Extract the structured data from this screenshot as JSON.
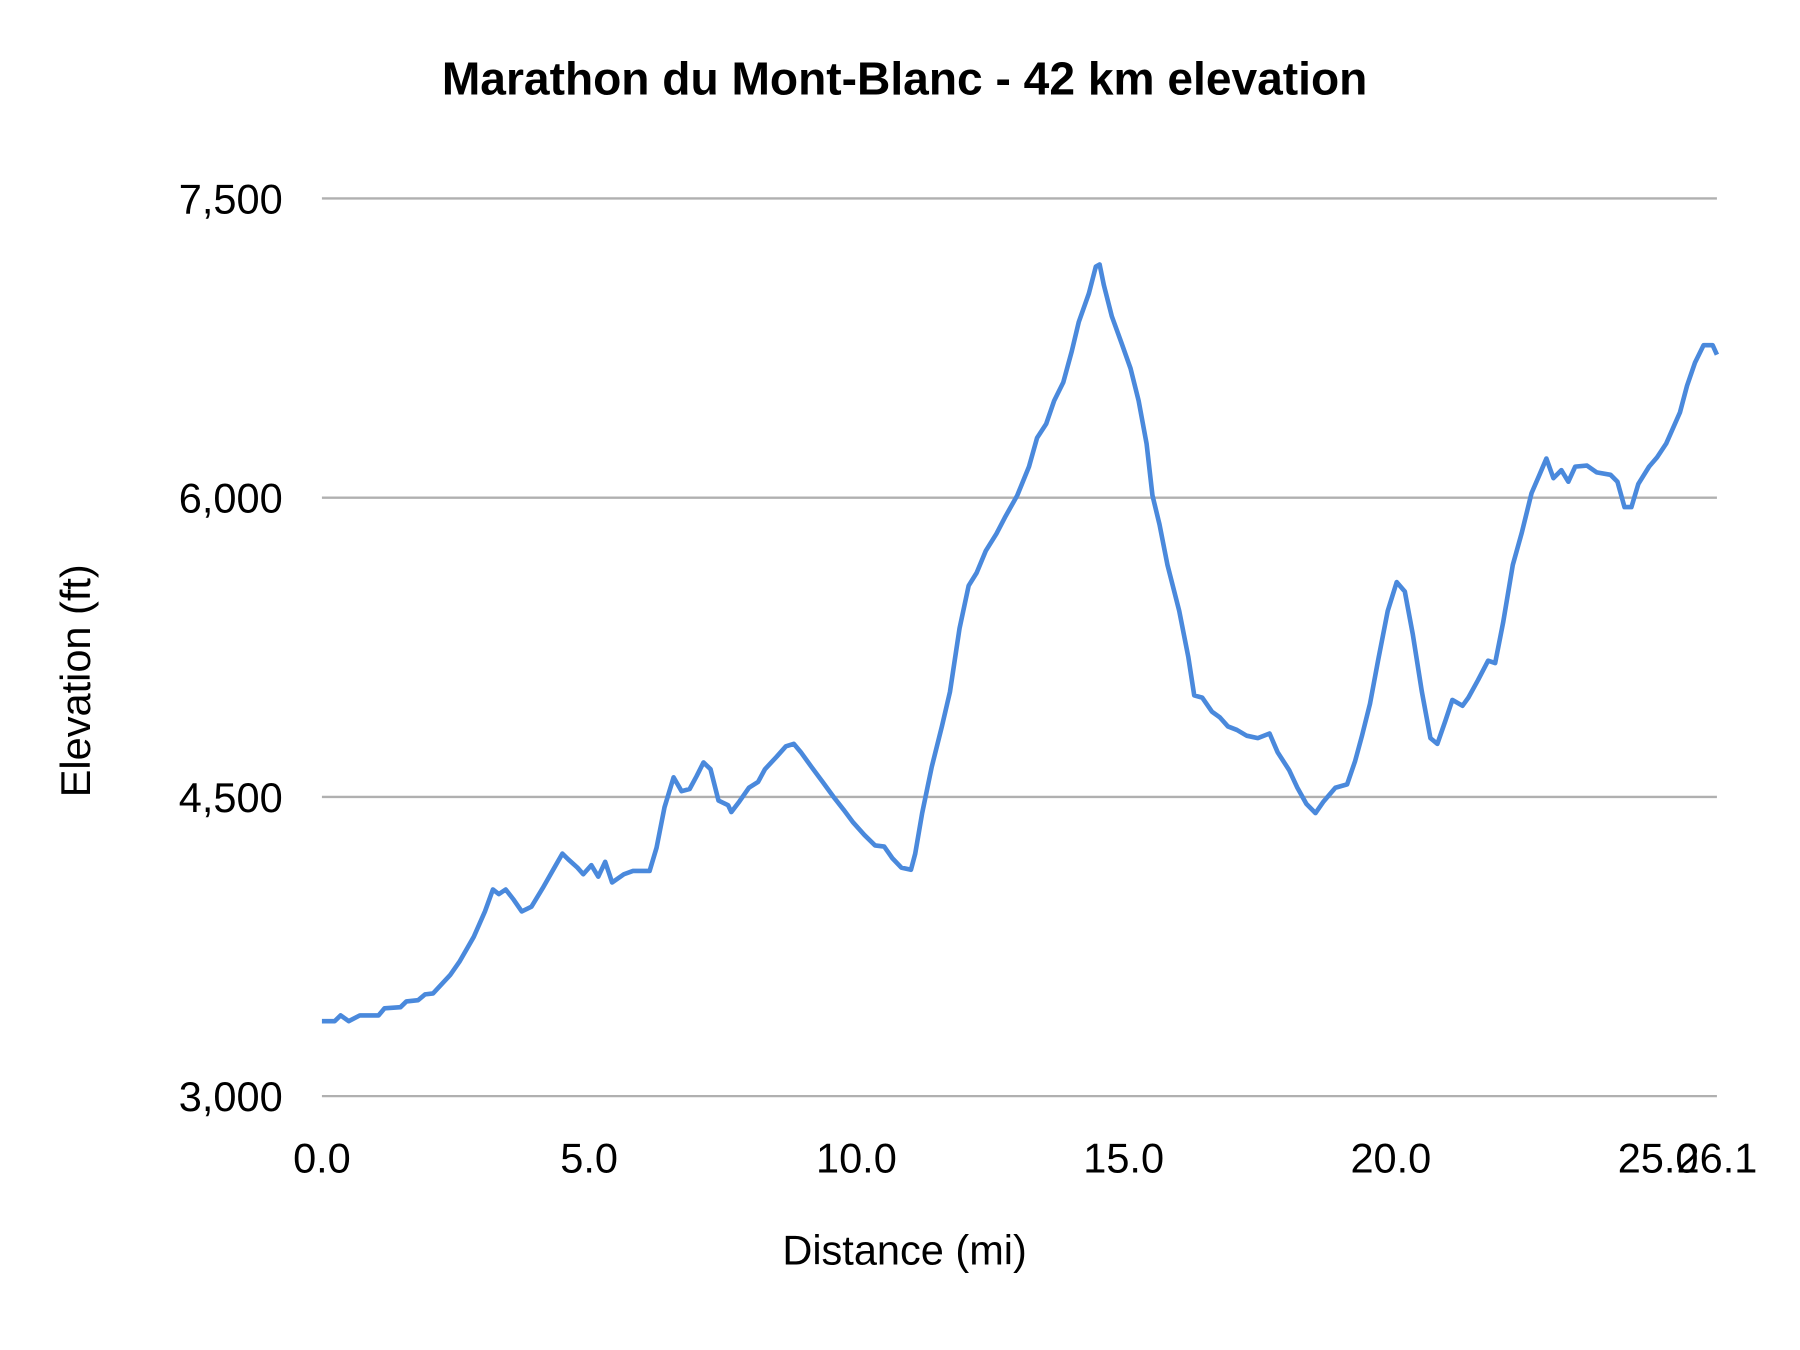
{
  "chart_data": {
    "type": "line",
    "title": "Marathon du Mont-Blanc - 42 km elevation",
    "xlabel": "Distance (mi)",
    "ylabel": "Elevation (ft)",
    "xlim": [
      0,
      26.1
    ],
    "ylim": [
      3000,
      7500
    ],
    "x_ticks": [
      "0.0",
      "5.0",
      "10.0",
      "15.0",
      "20.0",
      "25.0",
      "26.1"
    ],
    "x_tick_values": [
      0,
      5,
      10,
      15,
      20,
      25,
      26.1
    ],
    "y_ticks": [
      "3,000",
      "4,500",
      "6,000",
      "7,500"
    ],
    "y_tick_values": [
      3000,
      4500,
      6000,
      7500
    ],
    "grid": "horizontal",
    "legend": "none",
    "line_color": "#4a89dc",
    "series": [
      {
        "x": [
          0,
          0.24,
          0.35,
          0.5,
          0.71,
          1.06,
          1.17,
          1.47,
          1.58,
          1.8,
          1.93,
          2.08,
          2.4,
          2.58,
          2.84,
          3.05,
          3.2,
          3.31,
          3.44,
          3.59,
          3.74,
          3.92,
          4.13,
          4.35,
          4.5,
          4.61,
          4.78,
          4.89,
          5.04,
          5.17,
          5.3,
          5.43,
          5.65,
          5.82,
          6.13,
          6.26,
          6.41,
          6.58,
          6.73,
          6.88,
          7.01,
          7.14,
          7.27,
          7.42,
          7.6,
          7.66,
          7.81,
          7.99,
          8.16,
          8.29,
          8.51,
          8.68,
          8.83,
          8.96,
          9.16,
          9.37,
          9.59,
          9.76,
          9.94,
          10.15,
          10.35,
          10.52,
          10.67,
          10.84,
          11.02,
          11.1,
          11.23,
          11.41,
          11.6,
          11.75,
          11.93,
          12.1,
          12.25,
          12.42,
          12.62,
          12.79,
          13.01,
          13.23,
          13.38,
          13.55,
          13.7,
          13.87,
          14.03,
          14.16,
          14.35,
          14.48,
          14.55,
          14.63,
          14.78,
          14.96,
          15.13,
          15.28,
          15.43,
          15.54,
          15.67,
          15.82,
          16.04,
          16.21,
          16.32,
          16.47,
          16.65,
          16.8,
          16.95,
          17.12,
          17.3,
          17.51,
          17.73,
          17.88,
          18.1,
          18.25,
          18.42,
          18.59,
          18.74,
          18.96,
          19.18,
          19.33,
          19.46,
          19.61,
          19.76,
          19.94,
          20.11,
          20.26,
          20.41,
          20.58,
          20.74,
          20.87,
          21.02,
          21.15,
          21.34,
          21.45,
          21.63,
          21.82,
          21.95,
          22.1,
          22.28,
          22.45,
          22.63,
          22.78,
          22.91,
          23.04,
          23.19,
          23.32,
          23.45,
          23.67,
          23.85,
          24.11,
          24.24,
          24.37,
          24.5,
          24.63,
          24.83,
          24.98,
          25.15,
          25.41,
          25.54,
          25.69,
          25.85,
          26.02,
          26.1
        ],
        "y": [
          3376,
          3376,
          3405,
          3376,
          3405,
          3405,
          3440,
          3446,
          3475,
          3481,
          3510,
          3515,
          3608,
          3677,
          3799,
          3926,
          4036,
          4013,
          4036,
          3984,
          3926,
          3950,
          4042,
          4146,
          4216,
          4187,
          4146,
          4112,
          4158,
          4100,
          4175,
          4071,
          4112,
          4129,
          4129,
          4245,
          4448,
          4598,
          4529,
          4540,
          4604,
          4673,
          4639,
          4482,
          4459,
          4424,
          4477,
          4546,
          4575,
          4639,
          4702,
          4754,
          4766,
          4725,
          4650,
          4575,
          4494,
          4436,
          4372,
          4309,
          4257,
          4251,
          4193,
          4146,
          4135,
          4216,
          4419,
          4650,
          4853,
          5027,
          5345,
          5559,
          5623,
          5733,
          5820,
          5907,
          6011,
          6156,
          6300,
          6370,
          6486,
          6578,
          6735,
          6880,
          7024,
          7158,
          7169,
          7065,
          6909,
          6775,
          6648,
          6486,
          6271,
          6011,
          5866,
          5663,
          5432,
          5200,
          5009,
          4998,
          4928,
          4899,
          4853,
          4836,
          4807,
          4795,
          4818,
          4725,
          4633,
          4546,
          4465,
          4419,
          4477,
          4546,
          4563,
          4679,
          4807,
          4969,
          5183,
          5432,
          5577,
          5530,
          5316,
          5027,
          4795,
          4766,
          4882,
          4986,
          4957,
          4998,
          5085,
          5183,
          5171,
          5374,
          5663,
          5825,
          6022,
          6115,
          6196,
          6098,
          6138,
          6080,
          6156,
          6161,
          6127,
          6115,
          6080,
          5953,
          5953,
          6069,
          6156,
          6202,
          6271,
          6428,
          6561,
          6677,
          6764,
          6764,
          6717
        ]
      }
    ]
  }
}
